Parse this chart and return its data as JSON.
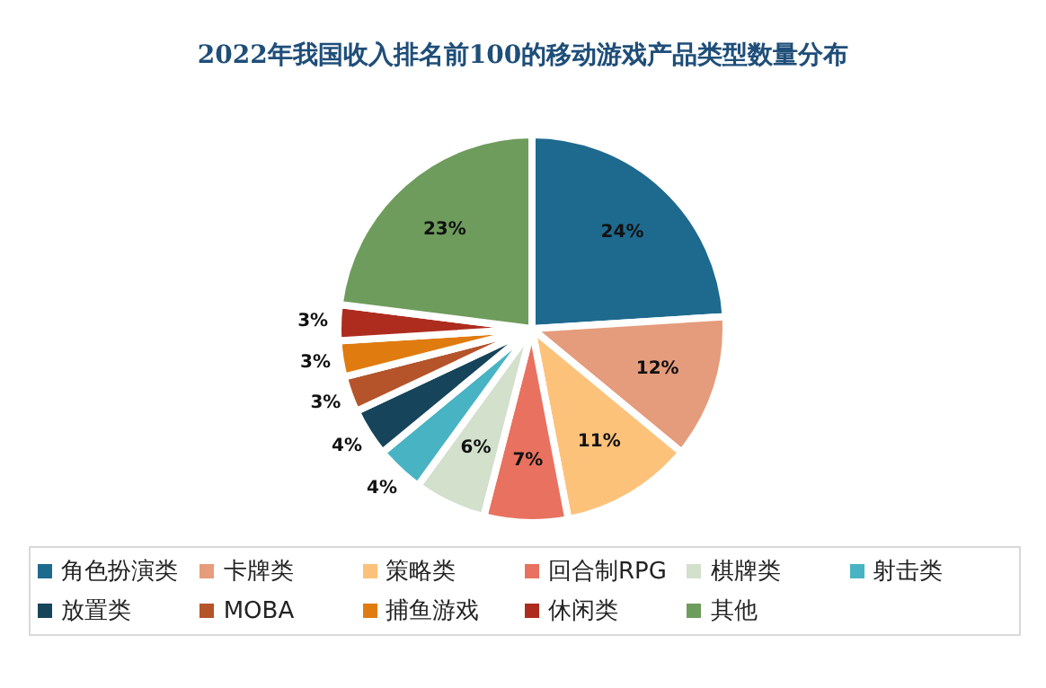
{
  "chart_data": {
    "type": "pie",
    "title": "2022年我国收入排名前100的移动游戏产品类型数量分布",
    "categories": [
      "角色扮演类",
      "卡牌类",
      "策略类",
      "回合制RPG",
      "棋牌类",
      "射击类",
      "放置类",
      "MOBA",
      "捕鱼游戏",
      "休闲类",
      "其他"
    ],
    "values": [
      24,
      12,
      11,
      7,
      6,
      4,
      4,
      3,
      3,
      3,
      23
    ],
    "value_labels": [
      "24%",
      "12%",
      "11%",
      "7%",
      "6%",
      "4%",
      "4%",
      "3%",
      "3%",
      "3%",
      "23%"
    ],
    "colors": [
      "#1e6a8f",
      "#e59c7c",
      "#fdc27a",
      "#e8725f",
      "#d2e0cc",
      "#48b3c3",
      "#16445a",
      "#b5532a",
      "#e07b10",
      "#ae2c1e",
      "#6e9c5c"
    ],
    "legend": "bottom"
  }
}
